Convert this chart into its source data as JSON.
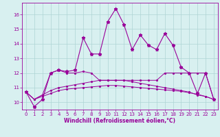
{
  "x": [
    0,
    1,
    2,
    3,
    4,
    5,
    6,
    7,
    8,
    9,
    10,
    11,
    12,
    13,
    14,
    15,
    16,
    17,
    18,
    19,
    20,
    21,
    22,
    23
  ],
  "line_main": [
    10.7,
    9.7,
    10.2,
    12.0,
    12.2,
    12.1,
    12.2,
    14.4,
    13.3,
    13.3,
    15.5,
    16.4,
    15.3,
    13.6,
    14.6,
    13.9,
    13.6,
    14.7,
    13.9,
    12.4,
    12.0,
    10.6,
    12.0,
    10.2
  ],
  "line_a": [
    10.7,
    10.2,
    10.5,
    12.0,
    12.2,
    12.0,
    12.0,
    12.1,
    12.0,
    11.5,
    11.5,
    11.5,
    11.5,
    11.5,
    11.5,
    11.5,
    11.5,
    12.0,
    12.0,
    12.0,
    12.0,
    12.0,
    12.0,
    10.2
  ],
  "line_b": [
    10.7,
    10.2,
    10.5,
    10.8,
    11.0,
    11.1,
    11.2,
    11.3,
    11.4,
    11.5,
    11.5,
    11.5,
    11.5,
    11.4,
    11.3,
    11.2,
    11.1,
    11.0,
    10.9,
    10.8,
    10.7,
    10.5,
    10.4,
    10.2
  ],
  "line_c": [
    10.7,
    10.2,
    10.4,
    10.6,
    10.8,
    10.9,
    10.95,
    11.0,
    11.05,
    11.1,
    11.15,
    11.15,
    11.1,
    11.05,
    11.0,
    10.95,
    10.9,
    10.85,
    10.8,
    10.75,
    10.65,
    10.55,
    10.4,
    10.2
  ],
  "line_color": "#990099",
  "bg_color": "#d8f0f0",
  "grid_color": "#aed4d4",
  "xlabel": "Windchill (Refroidissement éolien,°C)",
  "ylim": [
    9.5,
    16.8
  ],
  "xlim": [
    -0.5,
    23.5
  ],
  "yticks": [
    10,
    11,
    12,
    13,
    14,
    15,
    16
  ],
  "xticks": [
    0,
    1,
    2,
    3,
    4,
    5,
    6,
    7,
    8,
    9,
    10,
    11,
    12,
    13,
    14,
    15,
    16,
    17,
    18,
    19,
    20,
    21,
    22,
    23
  ]
}
